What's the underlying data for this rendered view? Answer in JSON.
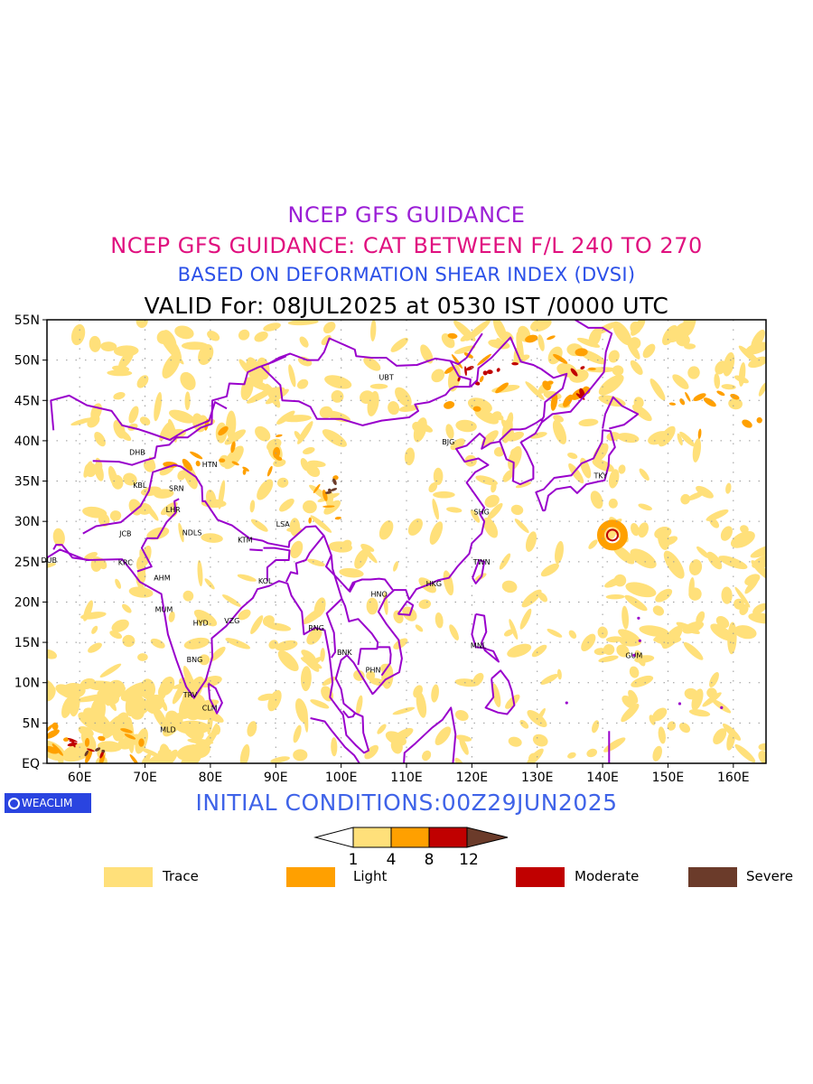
{
  "titles": {
    "line1": "NCEP GFS GUIDANCE",
    "line2": "NCEP GFS GUIDANCE: CAT BETWEEN F/L 240 TO 270",
    "line3": "BASED ON DEFORMATION SHEAR INDEX (DVSI)",
    "line4": "VALID For: 08JUL2025 at 0530 IST /0000 UTC"
  },
  "initial_conditions": "INITIAL CONDITIONS:00Z29JUN2025",
  "logo": {
    "text": "WEACLIM",
    "icon": "weaclim-logo-icon"
  },
  "map": {
    "lat_labels": [
      "55N",
      "50N",
      "45N",
      "40N",
      "35N",
      "30N",
      "25N",
      "20N",
      "15N",
      "10N",
      "5N",
      "EQ"
    ],
    "lon_labels": [
      "60E",
      "70E",
      "80E",
      "90E",
      "100E",
      "110E",
      "120E",
      "130E",
      "140E",
      "150E",
      "160E"
    ],
    "colors": {
      "trace": "#ffe07a",
      "light": "#ffa000",
      "moderate": "#c00000",
      "severe": "#6b3b2a",
      "boundary": "#9900cc"
    },
    "stations": [
      {
        "code": "UBT",
        "lon": 106.9,
        "lat": 47.9
      },
      {
        "code": "BJG",
        "lon": 116.4,
        "lat": 39.9
      },
      {
        "code": "DHB",
        "lon": 68.8,
        "lat": 38.6
      },
      {
        "code": "HTN",
        "lon": 79.9,
        "lat": 37.1
      },
      {
        "code": "KBL",
        "lon": 69.2,
        "lat": 34.5
      },
      {
        "code": "SRN",
        "lon": 74.8,
        "lat": 34.1
      },
      {
        "code": "LHR",
        "lon": 74.3,
        "lat": 31.5
      },
      {
        "code": "TKY",
        "lon": 139.7,
        "lat": 35.7
      },
      {
        "code": "SHG",
        "lon": 121.5,
        "lat": 31.2
      },
      {
        "code": "LSA",
        "lon": 91.1,
        "lat": 29.7
      },
      {
        "code": "JCB",
        "lon": 67.0,
        "lat": 28.5
      },
      {
        "code": "NDLS",
        "lon": 77.2,
        "lat": 28.6
      },
      {
        "code": "KTM",
        "lon": 85.3,
        "lat": 27.7
      },
      {
        "code": "DUB",
        "lon": 55.3,
        "lat": 25.2
      },
      {
        "code": "KRC",
        "lon": 67.0,
        "lat": 24.9
      },
      {
        "code": "TWN",
        "lon": 121.5,
        "lat": 25.0
      },
      {
        "code": "AHM",
        "lon": 72.6,
        "lat": 23.0
      },
      {
        "code": "KOL",
        "lon": 88.4,
        "lat": 22.6
      },
      {
        "code": "HKG",
        "lon": 114.2,
        "lat": 22.3
      },
      {
        "code": "HNO",
        "lon": 105.8,
        "lat": 21.0
      },
      {
        "code": "MUM",
        "lon": 72.9,
        "lat": 19.1
      },
      {
        "code": "HYD",
        "lon": 78.5,
        "lat": 17.4
      },
      {
        "code": "VZG",
        "lon": 83.3,
        "lat": 17.7
      },
      {
        "code": "RNG",
        "lon": 96.2,
        "lat": 16.8
      },
      {
        "code": "MNL",
        "lon": 121.0,
        "lat": 14.6
      },
      {
        "code": "BNK",
        "lon": 100.5,
        "lat": 13.8
      },
      {
        "code": "GUM",
        "lon": 144.8,
        "lat": 13.4
      },
      {
        "code": "BNG",
        "lon": 77.6,
        "lat": 12.9
      },
      {
        "code": "PHN",
        "lon": 104.9,
        "lat": 11.6
      },
      {
        "code": "TRV",
        "lon": 76.9,
        "lat": 8.5
      },
      {
        "code": "CLM",
        "lon": 79.9,
        "lat": 6.9
      },
      {
        "code": "MLD",
        "lon": 73.5,
        "lat": 4.2
      }
    ]
  },
  "colorbar": {
    "ticks": [
      "1",
      "4",
      "8",
      "12"
    ]
  },
  "legend": [
    {
      "label": "Trace",
      "color": "#ffe07a"
    },
    {
      "label": "Light",
      "color": "#ffa000"
    },
    {
      "label": "Moderate",
      "color": "#c00000"
    },
    {
      "label": "Severe",
      "color": "#6b3b2a"
    }
  ]
}
